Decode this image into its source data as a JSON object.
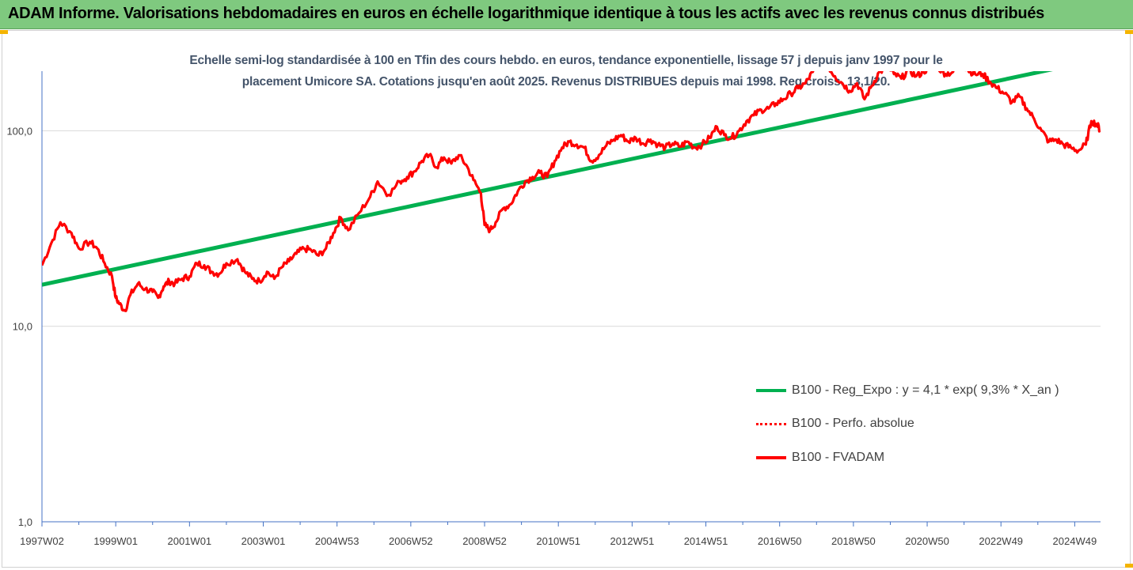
{
  "header": {
    "title": "ADAM Informe. Valorisations hebdomadaires en euros en échelle logarithmique identique à tous les actifs avec les revenus connus distribués"
  },
  "colors": {
    "banner": "#7fc97f",
    "regression": "#00b050",
    "fvadam": "#ff0000",
    "gridline": "#d9d9d9",
    "subtitle": "#44546a"
  },
  "chart_data": {
    "type": "line",
    "title_line1": "Echelle semi-log standardisée à 100 en Tfin des cours hebdo. en euros, tendance exponentielle, lissage 57 j depuis janv 1997 pour le",
    "title_line2": "placement Umicore SA. Cotations jusqu'en août 2025. Revenus DISTRIBUES depuis mai 1998. Reg croiss. 13,1/20.",
    "y_scale": "log",
    "ylim": [
      1,
      200
    ],
    "y_ticks": [
      {
        "value": 1,
        "label": "1,0"
      },
      {
        "value": 10,
        "label": "10,0"
      },
      {
        "value": 100,
        "label": "100,0"
      }
    ],
    "x_range": [
      1997.0,
      2025.7
    ],
    "x_ticks": [
      {
        "x": 1997.0,
        "label": "1997W02"
      },
      {
        "x": 1999.0,
        "label": "1999W01"
      },
      {
        "x": 2001.0,
        "label": "2001W01"
      },
      {
        "x": 2003.0,
        "label": "2003W01"
      },
      {
        "x": 2005.0,
        "label": "2004W53"
      },
      {
        "x": 2007.0,
        "label": "2006W52"
      },
      {
        "x": 2009.0,
        "label": "2008W52"
      },
      {
        "x": 2011.0,
        "label": "2010W51"
      },
      {
        "x": 2013.0,
        "label": "2012W51"
      },
      {
        "x": 2015.0,
        "label": "2014W51"
      },
      {
        "x": 2017.0,
        "label": "2016W50"
      },
      {
        "x": 2019.0,
        "label": "2018W50"
      },
      {
        "x": 2021.0,
        "label": "2020W50"
      },
      {
        "x": 2023.0,
        "label": "2022W49"
      },
      {
        "x": 2025.0,
        "label": "2024W49"
      }
    ],
    "grid": "horizontal",
    "legend_position": "lower-right",
    "series": [
      {
        "name": "B100 - Reg_Expo : y = 4,1 * exp( 9,3% *  X_an )",
        "style": "solid-green",
        "x": [
          1997.0,
          2025.7
        ],
        "y": [
          16.3,
          233
        ]
      },
      {
        "name": "B100 - Perfo. absolue",
        "style": "dotted-red",
        "x": [],
        "y": []
      },
      {
        "name": "B100 - FVADAM",
        "style": "solid-red",
        "x": [
          1997.0,
          1997.25,
          1997.5,
          1997.8,
          1998.0,
          1998.3,
          1998.5,
          1998.7,
          1998.9,
          1999.0,
          1999.1,
          1999.25,
          1999.4,
          1999.6,
          1999.8,
          2000.0,
          2000.15,
          2000.3,
          2000.45,
          2000.6,
          2000.8,
          2001.0,
          2001.2,
          2001.4,
          2001.6,
          2001.8,
          2002.0,
          2002.3,
          2002.5,
          2002.7,
          2002.9,
          2003.1,
          2003.3,
          2003.5,
          2003.7,
          2003.9,
          2004.1,
          2004.3,
          2004.5,
          2004.7,
          2004.9,
          2005.1,
          2005.3,
          2005.6,
          2005.9,
          2006.1,
          2006.4,
          2006.7,
          2006.9,
          2007.1,
          2007.3,
          2007.5,
          2007.7,
          2007.9,
          2008.1,
          2008.3,
          2008.5,
          2008.7,
          2008.9,
          2009.0,
          2009.15,
          2009.3,
          2009.5,
          2009.7,
          2009.9,
          2010.1,
          2010.3,
          2010.5,
          2010.7,
          2010.9,
          2011.1,
          2011.3,
          2011.5,
          2011.7,
          2011.9,
          2012.1,
          2012.3,
          2012.5,
          2012.7,
          2012.9,
          2013.1,
          2013.3,
          2013.5,
          2013.7,
          2013.9,
          2014.1,
          2014.3,
          2014.5,
          2014.7,
          2014.9,
          2015.1,
          2015.3,
          2015.5,
          2015.7,
          2015.9,
          2016.1,
          2016.3,
          2016.5,
          2016.7,
          2016.9,
          2017.1,
          2017.3,
          2017.5,
          2017.7,
          2017.9,
          2018.1,
          2018.3,
          2018.5,
          2018.7,
          2018.9,
          2019.1,
          2019.3,
          2019.5,
          2019.7,
          2019.9,
          2020.1,
          2020.3,
          2020.5,
          2020.7,
          2020.9,
          2021.1,
          2021.3,
          2021.5,
          2021.7,
          2021.9,
          2022.1,
          2022.3,
          2022.5,
          2022.7,
          2022.9,
          2023.1,
          2023.3,
          2023.5,
          2023.7,
          2023.9,
          2024.1,
          2024.3,
          2024.5,
          2024.7,
          2024.9,
          2025.1,
          2025.3,
          2025.45,
          2025.6,
          2025.7
        ],
        "y": [
          20.5,
          26.5,
          34.0,
          30.0,
          25.0,
          27.0,
          25.0,
          21.0,
          18.0,
          14.0,
          13.0,
          12.0,
          14.5,
          16.5,
          15.5,
          15.0,
          14.0,
          16.0,
          17.0,
          16.5,
          17.5,
          18.0,
          21.0,
          20.5,
          19.0,
          18.5,
          21.0,
          22.0,
          19.0,
          17.5,
          17.0,
          19.0,
          17.5,
          20.0,
          21.5,
          23.5,
          25.0,
          24.5,
          23.0,
          25.0,
          30.0,
          36.0,
          31.0,
          38.0,
          46.0,
          55.0,
          47.0,
          55.0,
          58.0,
          62.0,
          70.0,
          75.0,
          65.0,
          73.0,
          68.0,
          75.0,
          67.0,
          56.0,
          48.0,
          33.0,
          31.0,
          34.0,
          40.0,
          42.0,
          49.0,
          55.0,
          58.0,
          61.0,
          58.0,
          70.0,
          82.0,
          88.0,
          85.0,
          82.0,
          70.0,
          75.0,
          84.0,
          90.0,
          95.0,
          88.0,
          92.0,
          86.0,
          90.0,
          85.0,
          82.0,
          86.0,
          83.0,
          88.0,
          82.0,
          85.0,
          92.0,
          105.0,
          95.0,
          92.0,
          100.0,
          112.0,
          120.0,
          128.0,
          130.0,
          138.0,
          145.0,
          155.0,
          165.0,
          175.0,
          200.0,
          225.0,
          215.0,
          190.0,
          175.0,
          160.0,
          175.0,
          145.0,
          170.0,
          200.0,
          210.0,
          195.0,
          185.0,
          205.0,
          190.0,
          200.0,
          215.0,
          210.0,
          195.0,
          200.0,
          220.0,
          205.0,
          195.0,
          195.0,
          178.0,
          165.0,
          155.0,
          140.0,
          150.0,
          130.0,
          115.0,
          100.0,
          88.0,
          90.0,
          85.0,
          82.0,
          79.0,
          85.0,
          112.0,
          108.0,
          100.0
        ]
      }
    ]
  }
}
